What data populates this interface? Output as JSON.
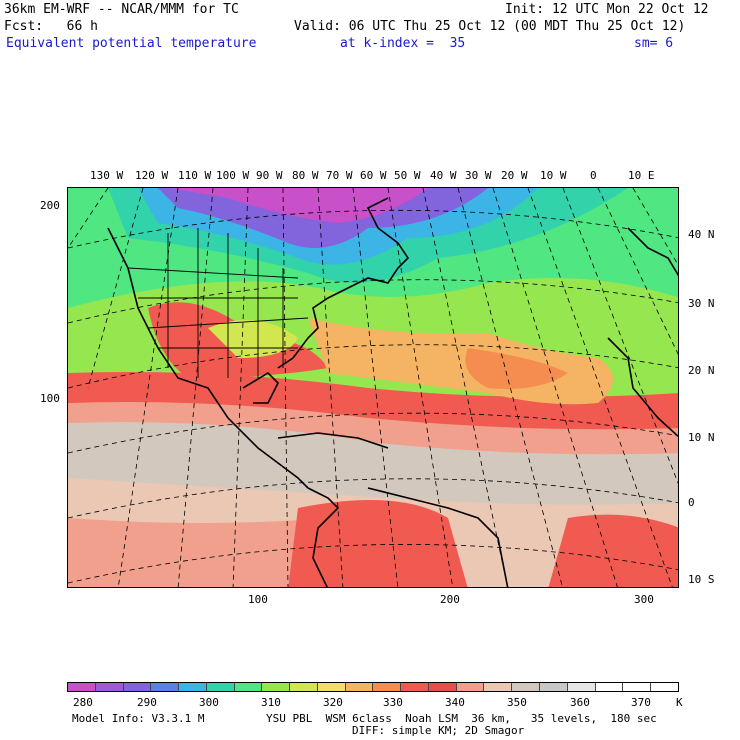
{
  "header": {
    "line1_left": "36km EM-WRF -- NCAR/MMM for TC",
    "line1_right": "Init: 12 UTC Mon 22 Oct 12",
    "line2_left": "Fcst:   66 h",
    "line2_right": "Valid: 06 UTC Thu 25 Oct 12 (00 MDT Thu 25 Oct 12)",
    "field": "Equivalent potential temperature",
    "level": "at k-index =  35",
    "smooth": "sm= 6"
  },
  "map": {
    "lon_labels": [
      "130 W",
      "120 W",
      "110 W",
      "100 W",
      "90 W",
      "80 W",
      "70 W",
      "60 W",
      "50 W",
      "40 W",
      "30 W",
      "20 W",
      "10 W",
      "0",
      "10 E"
    ],
    "lat_labels": [
      "40 N",
      "30 N",
      "20 N",
      "10 N",
      "0",
      "10 S"
    ],
    "y_grid_labels": [
      "200",
      "100"
    ],
    "x_grid_labels": [
      "100",
      "200",
      "300"
    ]
  },
  "colorbar": {
    "colors": [
      "#c850c8",
      "#a05ad2",
      "#8264dc",
      "#5a82e6",
      "#3cb4e6",
      "#32d2aa",
      "#50e682",
      "#96e650",
      "#d2e650",
      "#f5dc6e",
      "#f5b464",
      "#f58c50",
      "#f05a50",
      "#e6504b",
      "#f0a08c",
      "#ebc8b4",
      "#d2c8be",
      "#c8c8c8",
      "#e6e6e6",
      "#ffffff",
      "#ffffff",
      "#ffffff"
    ],
    "labels": [
      "280",
      "290",
      "300",
      "310",
      "320",
      "330",
      "340",
      "350",
      "360",
      "370"
    ],
    "unit": "K"
  },
  "footer": {
    "model_info": "Model Info: V3.3.1 M",
    "physics": "YSU PBL  WSM 6class  Noah LSM  36 km,   35 levels,  180 sec",
    "diff": "DIFF: simple KM; 2D Smagor"
  }
}
